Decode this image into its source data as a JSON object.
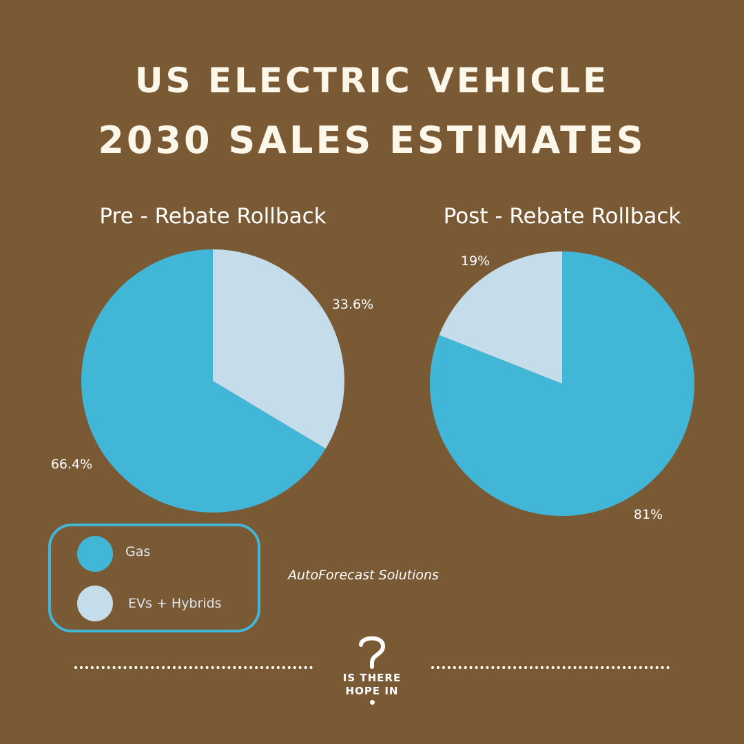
{
  "header": {
    "title_line1": "US ELECTRIC VEHICLE",
    "title_line2": "2030 SALES ESTIMATES"
  },
  "colors": {
    "background": "#7a5935",
    "gas": "#41b6d7",
    "evs_hybrids": "#c5dcea"
  },
  "chart_data": [
    {
      "type": "pie",
      "title": "Pre - Rebate Rollback",
      "slices": [
        {
          "label": "EVs + Hybrids",
          "value": 33.6,
          "display": "33.6%"
        },
        {
          "label": "Gas",
          "value": 66.4,
          "display": "66.4%"
        }
      ]
    },
    {
      "type": "pie",
      "title": "Post - Rebate Rollback",
      "slices": [
        {
          "label": "EVs + Hybrids",
          "value": 19,
          "display": "19%"
        },
        {
          "label": "Gas",
          "value": 81,
          "display": "81%"
        }
      ]
    }
  ],
  "legend": {
    "items": [
      {
        "label": "Gas",
        "color": "#41b6d7"
      },
      {
        "label": "EVs + Hybrids",
        "color": "#c5dcea"
      }
    ]
  },
  "source": "AutoForecast Solutions",
  "logo": {
    "icon": "question-mark-icon",
    "text_line1": "IS THERE",
    "text_line2": "HOPE IN"
  }
}
